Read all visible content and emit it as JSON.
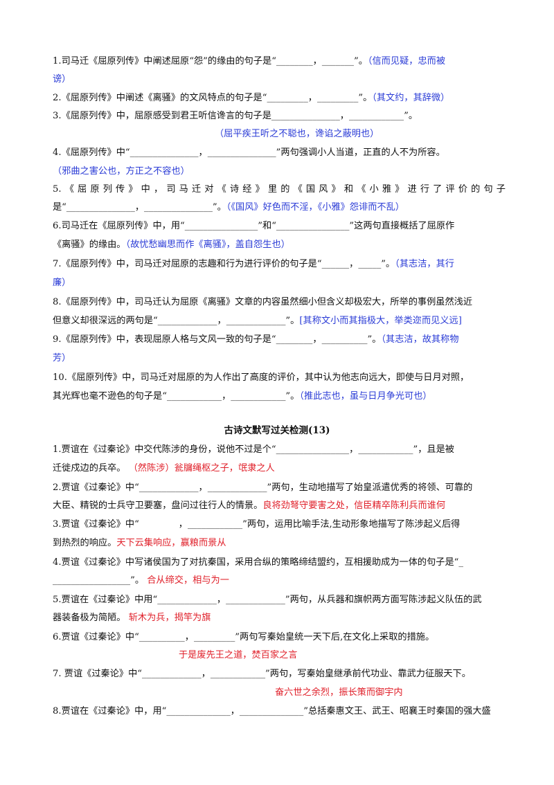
{
  "section1": {
    "q1": {
      "a": "1.司马迁《屈原列传》中阐述屈原“怨”的缘由的句子是“________，_______”。",
      "ans1": "（信而见疑，忠而被",
      "ans2": "谤）"
    },
    "q2": {
      "a": "2.《屈原列传》中阐述《离骚》的文风特点的句子是“_________，_________”。",
      "ans": "（其文约，其辞微）"
    },
    "q3": {
      "a": "3.《屈原列传》中，屈原感受到君王听信谗言的句子是_______________，____________”。",
      "ans": "（屈平疾王听之不聪也，谗谄之蔽明也）"
    },
    "q4": {
      "a": "4.《屈原列传》中“_______________，_______________”两句强调小人当道，正直的人不为所容。",
      "ans": "（邪曲之害公也，方正之不容也）"
    },
    "q5": {
      "a": "5.《屈原列传》中，司马迁对《诗经》里的《国风》和《小雅》进行了评价的句子",
      "b": "是“_______________，_______________”。",
      "ans": "（《国风》好色而不淫，《小雅》怨诽而不乱）"
    },
    "q6": {
      "a": "6.司马迁在《屈原列传》中，用“________________”和“________________”这两句直接概括了屈原作",
      "b": "《离骚》的缘由。",
      "ans": "（故忧愁幽思而作《离骚》，盖自怨生也）"
    },
    "q7": {
      "a": "7.《屈原列传》中，司马迁对屈原的志趣和行为进行评价的句子是“______，_____”。",
      "ans1": "（其志洁，其行",
      "ans2": "廉）"
    },
    "q8": {
      "a": "8.《屈原列传》中，司马迁认为屈原《离骚》文章的内容虽然细小但含义却极宏大，所举的事例虽然浅近",
      "b": "但意义却很深远的两句是“_____________，_____________”。",
      "ans": "[其称文小而其指极大，举类迩而见义远]"
    },
    "q9": {
      "a": "9.《屈原列传》中，表现屈原人格与文风一致的句子是“________，__________”。",
      "ans1": "（其志洁，故其称物",
      "ans2": "芳）"
    },
    "q10": {
      "a": "10.《屈原列传》中，司马迁对屈原的为人作出了高度的评价，其中认为他志向远大，即使与日月对照，",
      "b": "其光辉也毫不逊色的句子是“____________，____________”。",
      "ans": "（推此志也，虽与日月争光可也）"
    }
  },
  "section2": {
    "title": "古诗文默写过关检测(13)",
    "q1": {
      "a": "1.贾谊在《过秦论》中交代陈涉的身份，说他不过是个“________________，____________”，且是被",
      "b": "迁徙戍边的兵卒。",
      "ans": "（然陈涉）瓮牖绳枢之子，氓隶之人"
    },
    "q2": {
      "a": "2.贾谊《过秦论》中“_____________，_____________”两句，生动地描写了始皇派遣优秀的将领、可靠的",
      "b": "大臣、精锐的士兵守卫要塞，盘问过往行人的情景。",
      "ans": "良将劲弩守要害之处，信臣精卒陈利兵而谁何"
    },
    "q3": {
      "a": "3.贾谊《过秦论》中“　　　　 ，____________”两句，运用比喻手法,生动形象地描写了陈涉起义后得",
      "b": "到热烈的响应。",
      "ans": "天下云集响应，赢粮而景从"
    },
    "q4": {
      "a": "4.贾谊《过秦论》中写诸侯国为了对抗秦国，采用合纵的策略缔结盟约，互相援助成为一体的句子是“_",
      "b": "_________________”。",
      "ans": "合从缔交，相与为一"
    },
    "q5": {
      "a": "5.贾谊在《过秦论》中用“_____________，_____________”两句，从兵器和旗帜两方面写陈涉起义队伍的武",
      "b": "器装备极为简陋。",
      "ans": "斩木为兵，揭竿为旗"
    },
    "q6": {
      "a": "6.贾谊《过秦论》中“__________，_________”两句写秦始皇统一天下后,在文化上采取的措施。",
      "ans": "于是废先王之道，焚百家之言"
    },
    "q7": {
      "a": "7. 贾谊《过秦论》中“_____________，____________”两句，写秦始皇继承前代功业、靠武力征服天下。",
      "ans": "奋六世之余烈，振长策而御宇内"
    },
    "q8": {
      "a": "8.贾谊在《过秦论》中，用“______________，______________”总括秦惠文王、武王、昭襄王时秦国的强大盛"
    }
  }
}
